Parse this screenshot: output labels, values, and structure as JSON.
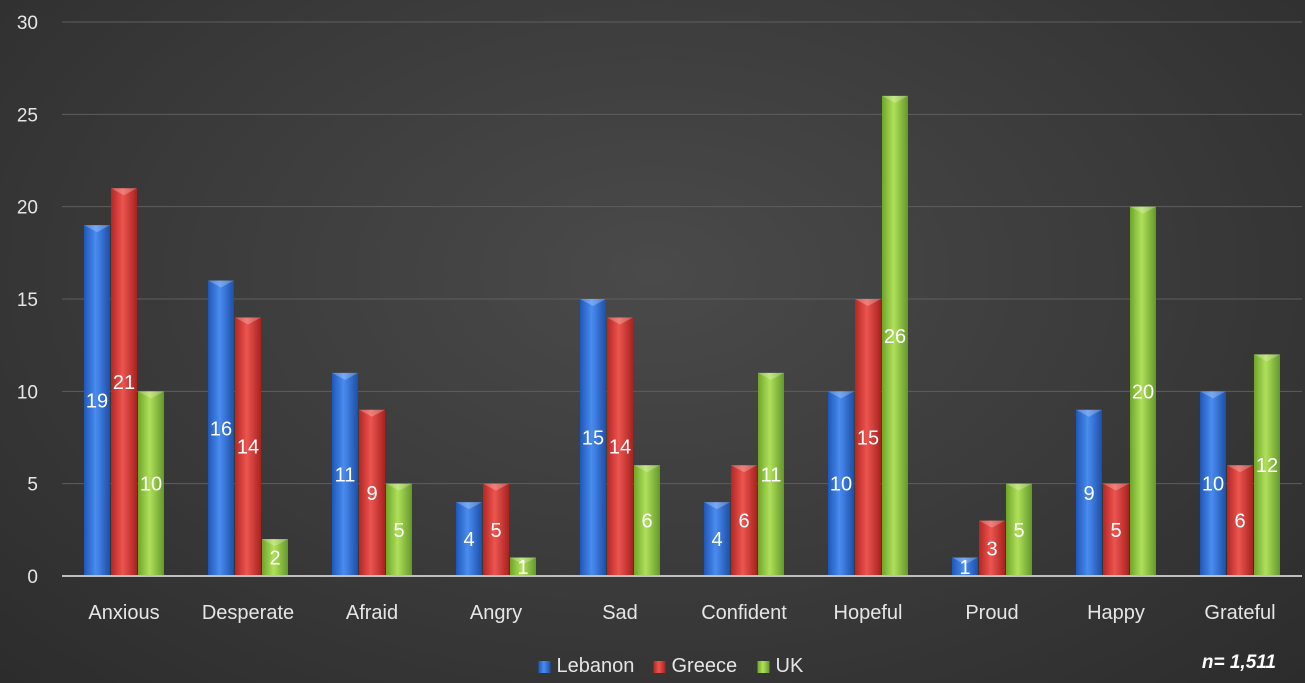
{
  "chart_data": {
    "type": "bar",
    "categories": [
      "Anxious",
      "Desperate",
      "Afraid",
      "Angry",
      "Sad",
      "Confident",
      "Hopeful",
      "Proud",
      "Happy",
      "Grateful"
    ],
    "series": [
      {
        "name": "Lebanon",
        "color": "#2f6fd6",
        "values": [
          19,
          16,
          11,
          4,
          15,
          4,
          10,
          1,
          9,
          10
        ]
      },
      {
        "name": "Greece",
        "color": "#d63a35",
        "values": [
          21,
          14,
          9,
          5,
          14,
          6,
          15,
          3,
          5,
          6
        ]
      },
      {
        "name": "UK",
        "color": "#8dc63f",
        "values": [
          10,
          2,
          5,
          1,
          6,
          11,
          26,
          5,
          20,
          12
        ]
      }
    ],
    "ylim": [
      0,
      30
    ],
    "yticks": [
      0,
      5,
      10,
      15,
      20,
      25,
      30
    ],
    "grid": true,
    "legend": "bottom",
    "data_labels": true,
    "note": "n= 1,511"
  }
}
